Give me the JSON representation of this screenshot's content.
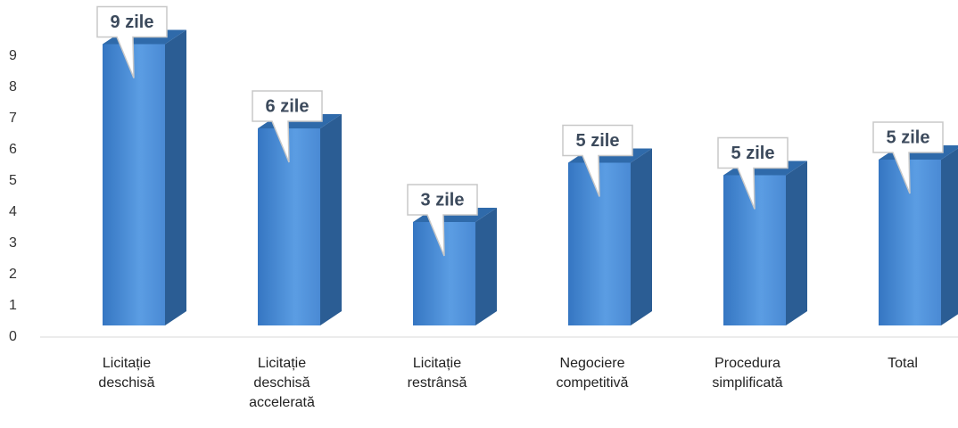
{
  "chart_data": {
    "type": "bar3d",
    "categories": [
      "Licitație deschisă",
      "Licitație deschisă accelerată",
      "Licitație restrânsă",
      "Negociere competitivă",
      "Procedura simplificată",
      "Total"
    ],
    "values": [
      9.1,
      6.4,
      3.4,
      5.3,
      4.9,
      5.4
    ],
    "value_labels": [
      "9 zile",
      "6 zile",
      "3 zile",
      "5 zile",
      "5 zile",
      "5 zile"
    ],
    "color": "#3d82cf",
    "ylim": [
      0,
      9
    ],
    "yticks": [
      0,
      1,
      2,
      3,
      4,
      5,
      6,
      7,
      8,
      9
    ],
    "grid": false
  }
}
